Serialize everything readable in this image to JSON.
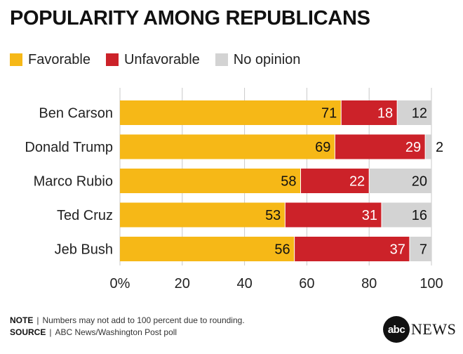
{
  "header": {
    "title": "POPULARITY AMONG REPUBLICANS"
  },
  "legend": [
    {
      "label": "Favorable",
      "color": "#F6B817"
    },
    {
      "label": "Unfavorable",
      "color": "#CC2229"
    },
    {
      "label": "No opinion",
      "color": "#D3D3D3"
    }
  ],
  "chart_data": {
    "type": "bar",
    "orientation": "horizontal",
    "stacked": true,
    "categories": [
      "Ben Carson",
      "Donald Trump",
      "Marco Rubio",
      "Ted Cruz",
      "Jeb Bush"
    ],
    "series": [
      {
        "name": "Favorable",
        "color": "#F6B817",
        "values": [
          71,
          69,
          58,
          53,
          56
        ]
      },
      {
        "name": "Unfavorable",
        "color": "#CC2229",
        "values": [
          18,
          29,
          22,
          31,
          37
        ]
      },
      {
        "name": "No opinion",
        "color": "#D3D3D3",
        "values": [
          12,
          2,
          20,
          16,
          7
        ]
      }
    ],
    "xlim": [
      0,
      100
    ],
    "x_ticks": [
      "0%",
      "20",
      "40",
      "60",
      "80",
      "100"
    ],
    "grid": "vertical",
    "legend_position": "top-left"
  },
  "footer": {
    "note_label": "NOTE",
    "note_text": "Numbers may not add to 100 percent due to rounding.",
    "source_label": "SOURCE",
    "source_text": "ABC News/Washington Post poll",
    "separator": "|"
  },
  "logo": {
    "mark": "abc",
    "word": "NEWS"
  }
}
